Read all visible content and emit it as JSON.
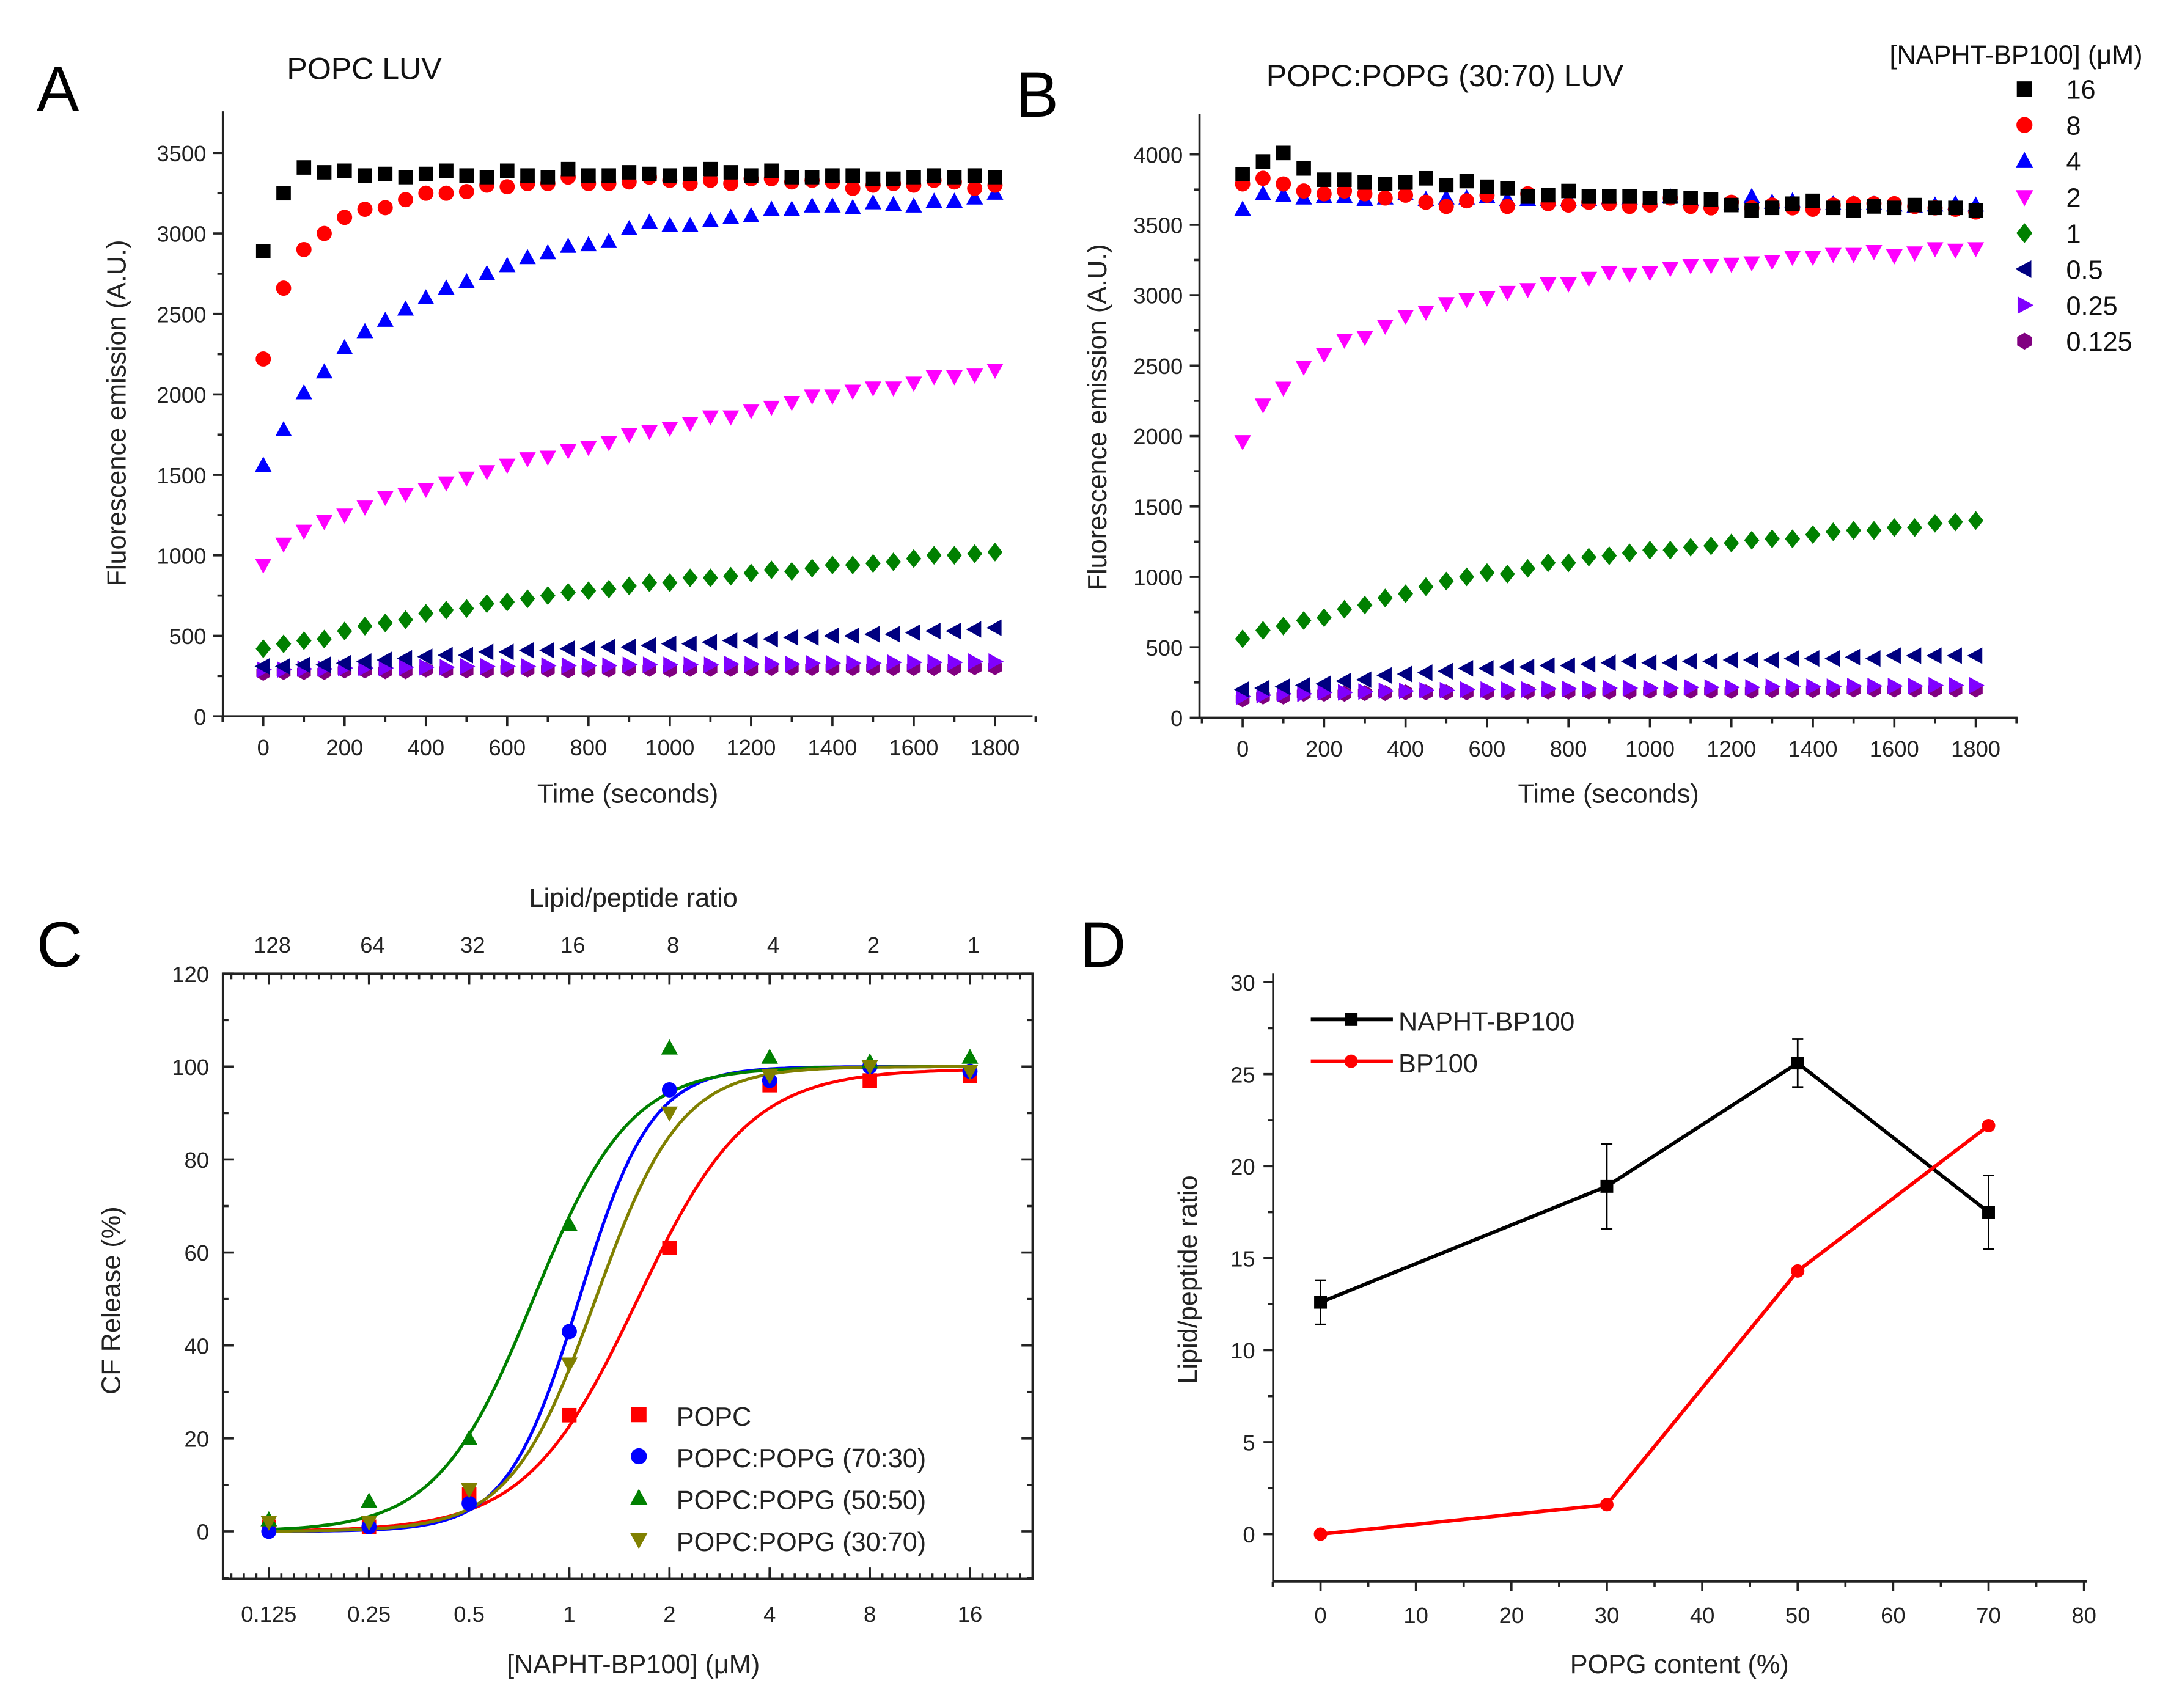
{
  "chart_data": [
    {
      "panel": "A",
      "type": "scatter",
      "title": "POPC LUV",
      "xlabel": "Time (seconds)",
      "ylabel": "Fluorescence emission (A.U.)",
      "xlim": [
        -100,
        1900
      ],
      "ylim": [
        0,
        3750
      ],
      "xticks": [
        0,
        200,
        400,
        600,
        800,
        1000,
        1200,
        1400,
        1600,
        1800
      ],
      "yticks": [
        0,
        500,
        1000,
        1500,
        2000,
        2500,
        3000,
        3500
      ],
      "x_start": 0,
      "x_step": 50,
      "series": [
        {
          "name": "16",
          "marker": "square",
          "color": "#000000",
          "values": [
            2890,
            3250,
            3410,
            3380,
            3390,
            3360,
            3370,
            3350,
            3370,
            3390,
            3360,
            3350,
            3390,
            3360,
            3350,
            3400,
            3360,
            3360,
            3380,
            3370,
            3360,
            3370,
            3400,
            3380,
            3360,
            3390,
            3350,
            3350,
            3360,
            3360,
            3340,
            3340,
            3350,
            3360,
            3350,
            3360,
            3350
          ]
        },
        {
          "name": "8",
          "marker": "circle",
          "color": "#ff0000",
          "values": [
            2220,
            2660,
            2900,
            3000,
            3100,
            3150,
            3160,
            3210,
            3250,
            3250,
            3260,
            3300,
            3290,
            3310,
            3310,
            3350,
            3310,
            3310,
            3320,
            3350,
            3330,
            3310,
            3330,
            3310,
            3340,
            3340,
            3320,
            3330,
            3320,
            3280,
            3300,
            3310,
            3300,
            3330,
            3320,
            3280,
            3300
          ]
        },
        {
          "name": "4",
          "marker": "triangle-up",
          "color": "#0000ff",
          "values": [
            1560,
            1780,
            2010,
            2140,
            2290,
            2390,
            2460,
            2530,
            2600,
            2660,
            2700,
            2750,
            2800,
            2850,
            2880,
            2920,
            2930,
            2950,
            3030,
            3070,
            3050,
            3050,
            3080,
            3100,
            3110,
            3150,
            3150,
            3170,
            3170,
            3160,
            3190,
            3180,
            3170,
            3200,
            3200,
            3220,
            3250
          ]
        },
        {
          "name": "2",
          "marker": "triangle-down",
          "color": "#ff00ff",
          "values": [
            940,
            1070,
            1150,
            1210,
            1250,
            1300,
            1360,
            1380,
            1410,
            1450,
            1480,
            1520,
            1560,
            1600,
            1610,
            1650,
            1670,
            1700,
            1750,
            1770,
            1790,
            1820,
            1860,
            1860,
            1900,
            1920,
            1950,
            1990,
            1990,
            2020,
            2040,
            2040,
            2070,
            2110,
            2110,
            2120,
            2150
          ]
        },
        {
          "name": "1",
          "marker": "diamond",
          "color": "#008000",
          "values": [
            420,
            450,
            470,
            480,
            530,
            560,
            580,
            600,
            640,
            660,
            670,
            700,
            710,
            730,
            750,
            770,
            780,
            790,
            810,
            830,
            830,
            860,
            860,
            870,
            890,
            910,
            900,
            920,
            940,
            940,
            950,
            960,
            980,
            1000,
            1000,
            1010,
            1020
          ]
        },
        {
          "name": "0.5",
          "marker": "triangle-left",
          "color": "#000080",
          "values": [
            310,
            310,
            320,
            320,
            330,
            340,
            350,
            360,
            370,
            380,
            380,
            400,
            400,
            410,
            410,
            420,
            420,
            430,
            430,
            440,
            450,
            450,
            460,
            470,
            470,
            480,
            490,
            490,
            500,
            500,
            510,
            510,
            520,
            530,
            530,
            540,
            550
          ]
        },
        {
          "name": "0.25",
          "marker": "triangle-right",
          "color": "#8000ff",
          "values": [
            290,
            290,
            295,
            295,
            300,
            300,
            300,
            305,
            305,
            305,
            310,
            310,
            310,
            310,
            315,
            315,
            315,
            315,
            320,
            320,
            320,
            320,
            320,
            325,
            325,
            325,
            325,
            330,
            330,
            330,
            330,
            335,
            335,
            335,
            335,
            340,
            340
          ]
        },
        {
          "name": "0.125",
          "marker": "hexagon",
          "color": "#800080",
          "values": [
            270,
            275,
            275,
            275,
            285,
            285,
            280,
            280,
            290,
            285,
            285,
            285,
            290,
            290,
            290,
            285,
            290,
            290,
            295,
            295,
            290,
            295,
            295,
            295,
            295,
            300,
            300,
            300,
            300,
            300,
            300,
            300,
            300,
            300,
            300,
            305,
            305
          ]
        }
      ]
    },
    {
      "panel": "B",
      "type": "scatter",
      "title": "POPC:POPG (30:70) LUV",
      "xlabel": "Time (seconds)",
      "ylabel": "Fluorescence emission (A.U.)",
      "xlim": [
        -100,
        1900
      ],
      "ylim": [
        0,
        4250
      ],
      "xticks": [
        0,
        200,
        400,
        600,
        800,
        1000,
        1200,
        1400,
        1600,
        1800
      ],
      "yticks": [
        0,
        500,
        1000,
        1500,
        2000,
        2500,
        3000,
        3500,
        4000
      ],
      "x_start": 0,
      "x_step": 50,
      "legend": {
        "title": "[NAPHT-BP100] (μM)",
        "placement": "top-right"
      },
      "series": [
        {
          "name": "16",
          "marker": "square",
          "color": "#000000",
          "values": [
            3860,
            3950,
            4010,
            3900,
            3820,
            3820,
            3800,
            3790,
            3800,
            3830,
            3780,
            3810,
            3770,
            3760,
            3700,
            3710,
            3740,
            3700,
            3700,
            3700,
            3690,
            3700,
            3690,
            3680,
            3640,
            3600,
            3620,
            3650,
            3670,
            3620,
            3600,
            3630,
            3620,
            3640,
            3620,
            3620,
            3600
          ]
        },
        {
          "name": "8",
          "marker": "circle",
          "color": "#ff0000",
          "values": [
            3790,
            3830,
            3790,
            3740,
            3720,
            3740,
            3720,
            3690,
            3710,
            3660,
            3630,
            3670,
            3710,
            3630,
            3720,
            3650,
            3640,
            3660,
            3650,
            3630,
            3640,
            3690,
            3630,
            3620,
            3660,
            3620,
            3640,
            3620,
            3610,
            3640,
            3650,
            3650,
            3650,
            3630,
            3620,
            3610,
            3590
          ]
        },
        {
          "name": "4",
          "marker": "triangle-up",
          "color": "#0000ff",
          "values": [
            3610,
            3720,
            3710,
            3690,
            3700,
            3700,
            3680,
            3690,
            3720,
            3680,
            3690,
            3690,
            3700,
            3680,
            3680,
            3680,
            3680,
            3680,
            3690,
            3690,
            3670,
            3700,
            3680,
            3660,
            3650,
            3700,
            3660,
            3670,
            3650,
            3650,
            3650,
            3650,
            3640,
            3630,
            3640,
            3650,
            3640
          ]
        },
        {
          "name": "2",
          "marker": "triangle-down",
          "color": "#ff00ff",
          "values": [
            1960,
            2220,
            2340,
            2490,
            2580,
            2680,
            2700,
            2780,
            2850,
            2880,
            2940,
            2970,
            2980,
            3020,
            3040,
            3080,
            3080,
            3120,
            3160,
            3150,
            3160,
            3190,
            3210,
            3210,
            3220,
            3230,
            3240,
            3270,
            3270,
            3290,
            3290,
            3310,
            3280,
            3300,
            3330,
            3320,
            3330
          ]
        },
        {
          "name": "1",
          "marker": "diamond",
          "color": "#008000",
          "values": [
            560,
            620,
            650,
            690,
            710,
            770,
            800,
            850,
            880,
            930,
            970,
            1000,
            1030,
            1020,
            1060,
            1100,
            1100,
            1140,
            1150,
            1170,
            1190,
            1190,
            1210,
            1220,
            1240,
            1260,
            1270,
            1270,
            1300,
            1320,
            1330,
            1330,
            1350,
            1350,
            1380,
            1390,
            1400
          ]
        },
        {
          "name": "0.5",
          "marker": "triangle-left",
          "color": "#000080",
          "values": [
            200,
            210,
            220,
            230,
            240,
            260,
            270,
            300,
            310,
            320,
            330,
            350,
            350,
            360,
            360,
            370,
            370,
            380,
            390,
            400,
            390,
            390,
            400,
            400,
            410,
            410,
            410,
            420,
            420,
            420,
            430,
            420,
            440,
            440,
            440,
            440,
            440
          ]
        },
        {
          "name": "0.25",
          "marker": "triangle-right",
          "color": "#8000ff",
          "values": [
            150,
            160,
            170,
            170,
            180,
            180,
            185,
            190,
            190,
            195,
            195,
            200,
            200,
            200,
            200,
            205,
            205,
            205,
            210,
            210,
            210,
            210,
            215,
            215,
            215,
            215,
            220,
            220,
            220,
            220,
            225,
            225,
            225,
            225,
            230,
            230,
            230
          ]
        },
        {
          "name": "0.125",
          "marker": "hexagon",
          "color": "#800080",
          "values": [
            130,
            150,
            150,
            170,
            170,
            170,
            175,
            175,
            180,
            180,
            180,
            180,
            180,
            180,
            185,
            185,
            185,
            185,
            185,
            185,
            190,
            190,
            190,
            190,
            190,
            190,
            195,
            195,
            195,
            195,
            200,
            200,
            200,
            200,
            200,
            200,
            200
          ]
        }
      ]
    },
    {
      "panel": "C",
      "type": "scatter",
      "xlabel": "[NAPHT-BP100] (μM)",
      "ylabel": "CF Release (%)",
      "top_xlabel": "Lipid/peptide ratio",
      "x_scale": "log2",
      "xlim": [
        0.09,
        24
      ],
      "ylim": [
        -10,
        120
      ],
      "xticks": [
        "0.125",
        "0.25",
        "0.5",
        "1",
        "2",
        "4",
        "8",
        "16"
      ],
      "top_xticks": [
        "128",
        "64",
        "32",
        "16",
        "8",
        "4",
        "2",
        "1"
      ],
      "yticks": [
        0,
        20,
        40,
        60,
        80,
        100,
        120
      ],
      "legend_placement": "bottom-right",
      "x": [
        0.125,
        0.25,
        0.5,
        1,
        2,
        4,
        8,
        16
      ],
      "series": [
        {
          "name": "POPC",
          "marker": "square",
          "color": "#ff0000",
          "values": [
            1,
            1,
            8,
            25,
            61,
            96,
            97,
            98
          ]
        },
        {
          "name": "POPC:POPG (70:30)",
          "marker": "circle",
          "color": "#0000ff",
          "values": [
            0,
            1,
            6,
            43,
            95,
            97,
            100,
            99
          ]
        },
        {
          "name": "POPC:POPG (50:50)",
          "marker": "triangle-up",
          "color": "#008000",
          "values": [
            2.5,
            6.5,
            20,
            66,
            104,
            102,
            101,
            102
          ]
        },
        {
          "name": "POPC:POPG (30:70)",
          "marker": "triangle-down",
          "color": "#808000",
          "values": [
            2,
            2,
            9,
            36,
            90,
            98,
            100,
            99
          ]
        }
      ]
    },
    {
      "panel": "D",
      "type": "line",
      "xlabel": "POPG content (%)",
      "ylabel": "Lipid/peptide ratio",
      "xlim": [
        -5,
        80
      ],
      "ylim": [
        -2.5,
        30
      ],
      "xticks": [
        0,
        10,
        20,
        30,
        40,
        50,
        60,
        70,
        80
      ],
      "yticks": [
        0,
        5,
        10,
        15,
        20,
        25,
        30
      ],
      "legend_placement": "top-left",
      "x": [
        0,
        30,
        50,
        70
      ],
      "series": [
        {
          "name": "NAPHT-BP100",
          "marker": "square",
          "color": "#000000",
          "values": [
            12.6,
            18.9,
            25.6,
            17.5
          ],
          "errors": [
            1.2,
            2.3,
            1.3,
            2.0
          ]
        },
        {
          "name": "BP100",
          "marker": "circle",
          "color": "#ff0000",
          "values": [
            0,
            1.6,
            14.3,
            22.2
          ]
        }
      ]
    }
  ],
  "panel_letters": {
    "a": "A",
    "b": "B",
    "c": "C",
    "d": "D"
  }
}
